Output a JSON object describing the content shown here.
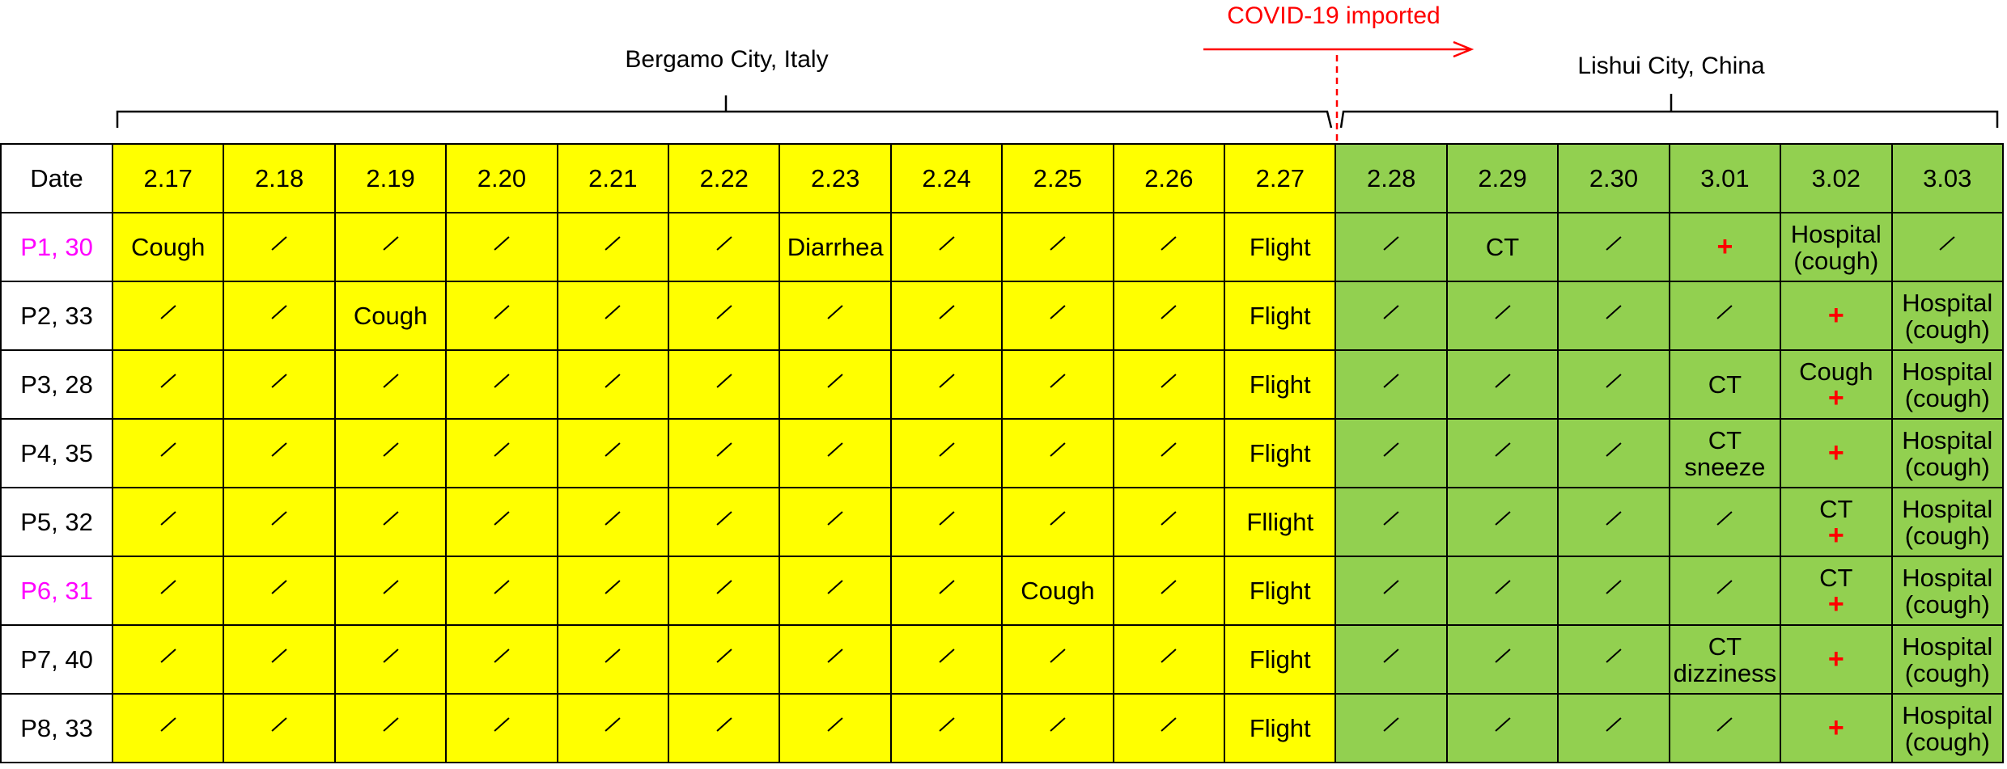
{
  "annotations": {
    "covid_label": "COVID-19 imported",
    "left_region": "Bergamo City, Italy",
    "right_region": "Lishui City, China"
  },
  "colors": {
    "italy": "#ffff00",
    "china": "#92d050",
    "highlight_patient": "#ff00ff",
    "positive": "#ff0000",
    "arrow": "#ff0000"
  },
  "table": {
    "header_label": "Date",
    "dates": [
      "2.17",
      "2.18",
      "2.19",
      "2.20",
      "2.21",
      "2.22",
      "2.23",
      "2.24",
      "2.25",
      "2.26",
      "2.27",
      "2.28",
      "2.29",
      "2.30",
      "3.01",
      "3.02",
      "3.03"
    ],
    "italy_columns": 11,
    "rows": [
      {
        "patient": "P1, 30",
        "highlight": true,
        "cells": [
          [
            "Cough"
          ],
          [
            "/"
          ],
          [
            "/"
          ],
          [
            "/"
          ],
          [
            "/"
          ],
          [
            "/"
          ],
          [
            "Diarrhea"
          ],
          [
            "/"
          ],
          [
            "/"
          ],
          [
            "/"
          ],
          [
            "Flight"
          ],
          [
            "/"
          ],
          [
            "CT"
          ],
          [
            "/"
          ],
          [
            "+"
          ],
          [
            "Hospital",
            "(cough)"
          ],
          [
            "/"
          ]
        ]
      },
      {
        "patient": "P2, 33",
        "highlight": false,
        "cells": [
          [
            "/"
          ],
          [
            "/"
          ],
          [
            "Cough"
          ],
          [
            "/"
          ],
          [
            "/"
          ],
          [
            "/"
          ],
          [
            "/"
          ],
          [
            "/"
          ],
          [
            "/"
          ],
          [
            "/"
          ],
          [
            "Flight"
          ],
          [
            "/"
          ],
          [
            "/"
          ],
          [
            "/"
          ],
          [
            "/"
          ],
          [
            "+"
          ],
          [
            "Hospital",
            "(cough)"
          ]
        ]
      },
      {
        "patient": "P3, 28",
        "highlight": false,
        "cells": [
          [
            "/"
          ],
          [
            "/"
          ],
          [
            "/"
          ],
          [
            "/"
          ],
          [
            "/"
          ],
          [
            "/"
          ],
          [
            "/"
          ],
          [
            "/"
          ],
          [
            "/"
          ],
          [
            "/"
          ],
          [
            "Flight"
          ],
          [
            "/"
          ],
          [
            "/"
          ],
          [
            "/"
          ],
          [
            "CT"
          ],
          [
            "Cough",
            "+"
          ],
          [
            "Hospital",
            "(cough)"
          ]
        ]
      },
      {
        "patient": "P4, 35",
        "highlight": false,
        "cells": [
          [
            "/"
          ],
          [
            "/"
          ],
          [
            "/"
          ],
          [
            "/"
          ],
          [
            "/"
          ],
          [
            "/"
          ],
          [
            "/"
          ],
          [
            "/"
          ],
          [
            "/"
          ],
          [
            "/"
          ],
          [
            "Flight"
          ],
          [
            "/"
          ],
          [
            "/"
          ],
          [
            "/"
          ],
          [
            "CT",
            "sneeze"
          ],
          [
            "+"
          ],
          [
            "Hospital",
            "(cough)"
          ]
        ]
      },
      {
        "patient": "P5, 32",
        "highlight": false,
        "cells": [
          [
            "/"
          ],
          [
            "/"
          ],
          [
            "/"
          ],
          [
            "/"
          ],
          [
            "/"
          ],
          [
            "/"
          ],
          [
            "/"
          ],
          [
            "/"
          ],
          [
            "/"
          ],
          [
            "/"
          ],
          [
            "Fllight"
          ],
          [
            "/"
          ],
          [
            "/"
          ],
          [
            "/"
          ],
          [
            "/"
          ],
          [
            "CT",
            "+"
          ],
          [
            "Hospital",
            "(cough)"
          ]
        ]
      },
      {
        "patient": "P6, 31",
        "highlight": true,
        "cells": [
          [
            "/"
          ],
          [
            "/"
          ],
          [
            "/"
          ],
          [
            "/"
          ],
          [
            "/"
          ],
          [
            "/"
          ],
          [
            "/"
          ],
          [
            "/"
          ],
          [
            "Cough"
          ],
          [
            "/"
          ],
          [
            "Flight"
          ],
          [
            "/"
          ],
          [
            "/"
          ],
          [
            "/"
          ],
          [
            "/"
          ],
          [
            "CT",
            "+"
          ],
          [
            "Hospital",
            "(cough)"
          ]
        ]
      },
      {
        "patient": "P7, 40",
        "highlight": false,
        "cells": [
          [
            "/"
          ],
          [
            "/"
          ],
          [
            "/"
          ],
          [
            "/"
          ],
          [
            "/"
          ],
          [
            "/"
          ],
          [
            "/"
          ],
          [
            "/"
          ],
          [
            "/"
          ],
          [
            "/"
          ],
          [
            "Flight"
          ],
          [
            "/"
          ],
          [
            "/"
          ],
          [
            "/"
          ],
          [
            "CT",
            "dizziness"
          ],
          [
            "+"
          ],
          [
            "Hospital",
            "(cough)"
          ]
        ]
      },
      {
        "patient": "P8, 33",
        "highlight": false,
        "cells": [
          [
            "/"
          ],
          [
            "/"
          ],
          [
            "/"
          ],
          [
            "/"
          ],
          [
            "/"
          ],
          [
            "/"
          ],
          [
            "/"
          ],
          [
            "/"
          ],
          [
            "/"
          ],
          [
            "/"
          ],
          [
            "Flight"
          ],
          [
            "/"
          ],
          [
            "/"
          ],
          [
            "/"
          ],
          [
            "/"
          ],
          [
            "+"
          ],
          [
            "Hospital",
            "(cough)"
          ]
        ]
      }
    ]
  }
}
